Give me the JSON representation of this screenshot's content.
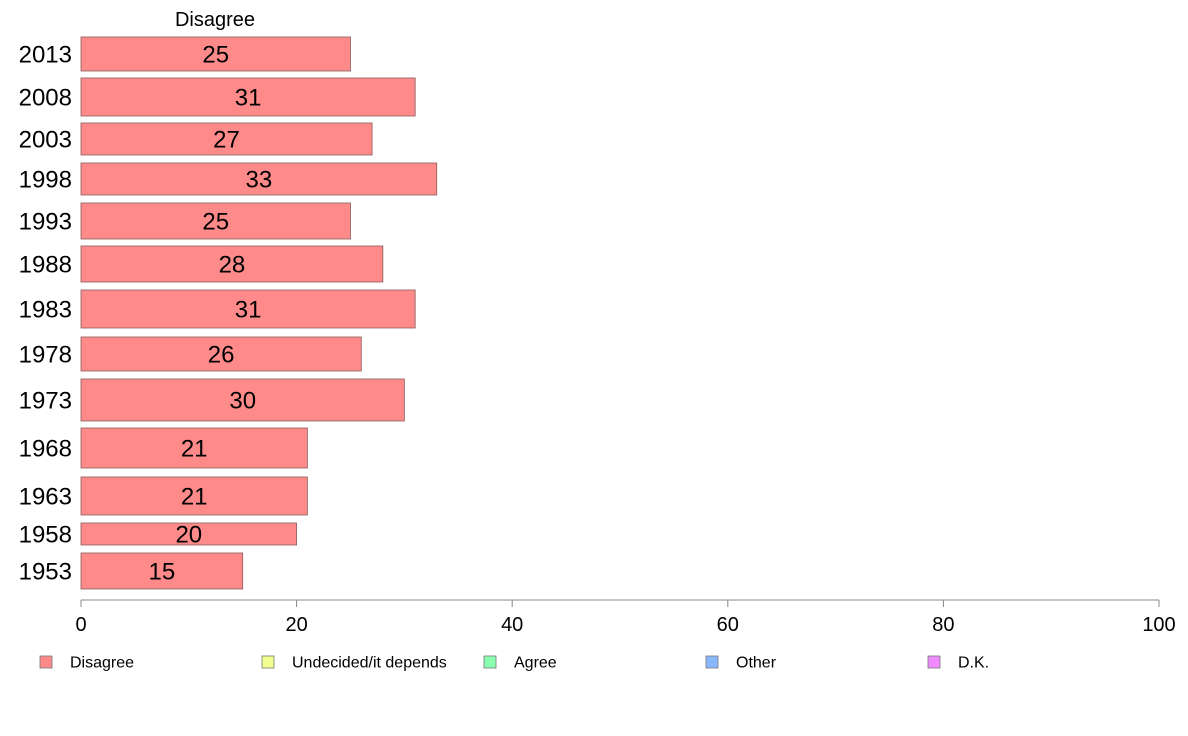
{
  "chart_data": {
    "type": "bar",
    "orientation": "horizontal",
    "series_title": "Disagree",
    "categories": [
      "2013",
      "2008",
      "2003",
      "1998",
      "1993",
      "1988",
      "1983",
      "1978",
      "1973",
      "1968",
      "1963",
      "1958",
      "1953"
    ],
    "series": [
      {
        "name": "Disagree",
        "values": [
          25,
          31,
          27,
          33,
          25,
          28,
          31,
          26,
          30,
          21,
          21,
          20,
          15
        ],
        "color": "#ff8a8a"
      }
    ],
    "xlim": [
      0,
      100
    ],
    "xticks": [
      0,
      20,
      40,
      60,
      80,
      100
    ],
    "grid": false,
    "legend_position": "bottom",
    "legend": [
      {
        "label": "Disagree",
        "color": "#ff8a8a"
      },
      {
        "label": "Undecided/it depends",
        "color": "#f0ff90"
      },
      {
        "label": "Agree",
        "color": "#8affb0"
      },
      {
        "label": "Other",
        "color": "#8ab8ff"
      },
      {
        "label": "D.K.",
        "color": "#f08aff"
      }
    ]
  }
}
